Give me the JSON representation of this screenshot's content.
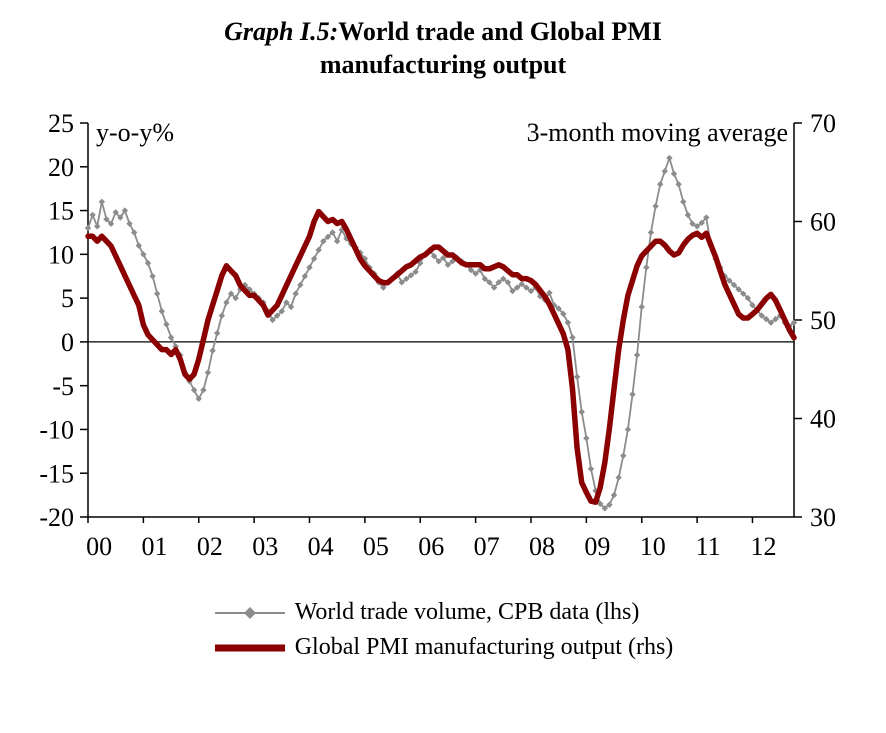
{
  "title": {
    "prefix": "Graph I.5:",
    "line1": "World trade and Global PMI",
    "line2": "manufacturing output"
  },
  "annotations": {
    "left": "y-o-y%",
    "right": "3-month moving average"
  },
  "legend": [
    {
      "label": "World trade volume, CPB data (lhs)"
    },
    {
      "label": "Global PMI manufacturing output (rhs)"
    }
  ],
  "chart_data": {
    "type": "line",
    "title": "Graph I.5: World trade and Global PMI manufacturing output",
    "x_range": [
      2000,
      2012.75
    ],
    "x_tick_labels": [
      "00",
      "01",
      "02",
      "03",
      "04",
      "05",
      "06",
      "07",
      "08",
      "09",
      "10",
      "11",
      "12"
    ],
    "left_axis": {
      "label": "y-o-y%",
      "range": [
        -20,
        25
      ],
      "ticks": [
        25,
        20,
        15,
        10,
        5,
        0,
        -5,
        -10,
        -15,
        -20
      ]
    },
    "right_axis": {
      "range": [
        30,
        70
      ],
      "ticks": [
        70,
        60,
        50,
        40,
        30
      ]
    },
    "frequency": "monthly",
    "series": [
      {
        "name": "World trade volume, CPB data (lhs)",
        "axis": "left",
        "color": "#8c8c8c",
        "marker": "diamond",
        "line_width": 1.8,
        "values": [
          13,
          14.5,
          13.2,
          16,
          14,
          13.5,
          14.8,
          14.2,
          15,
          13.5,
          12.5,
          11,
          10,
          9,
          7.5,
          5.5,
          3.5,
          2,
          0.5,
          -0.5,
          -1.5,
          -3.5,
          -4.5,
          -5.5,
          -6.5,
          -5.5,
          -3.5,
          -1,
          1,
          3,
          4.5,
          5.5,
          5,
          6,
          6.5,
          6,
          5.5,
          5,
          4.5,
          3.5,
          2.5,
          3,
          3.5,
          4.5,
          4,
          5.5,
          6.5,
          7.5,
          8.5,
          9.5,
          10.5,
          11.5,
          12,
          12.5,
          11.5,
          12.8,
          11.8,
          11.2,
          10.8,
          10.2,
          9.5,
          8.5,
          7.8,
          6.8,
          6.2,
          6.8,
          7.2,
          7.8,
          6.8,
          7.2,
          7.6,
          8,
          9,
          10,
          10.5,
          9.8,
          9.2,
          9.6,
          8.8,
          9.2,
          9.6,
          9.2,
          8.8,
          8.2,
          7.8,
          8.2,
          7.2,
          6.8,
          6.2,
          6.8,
          7.2,
          6.8,
          5.8,
          6.2,
          6.6,
          6.2,
          5.8,
          6.2,
          5.2,
          4.8,
          5.6,
          4.2,
          3.8,
          3.2,
          2.2,
          0.5,
          -4,
          -8,
          -11,
          -14.5,
          -17,
          -18.5,
          -19,
          -18.6,
          -17.5,
          -15.5,
          -13,
          -10,
          -6,
          -1.5,
          4,
          8.5,
          12.5,
          15.5,
          18,
          19.5,
          21,
          19.2,
          18,
          16,
          14.5,
          13.5,
          13.2,
          13.6,
          14.2,
          11,
          9.5,
          8.5,
          7.5,
          7,
          6.5,
          6,
          5.5,
          5,
          4.2,
          3.6,
          3,
          2.6,
          2.2,
          2.6,
          3,
          2.2,
          1.8,
          2.2
        ]
      },
      {
        "name": "Global PMI manufacturing output (rhs)",
        "axis": "right",
        "color": "#8b0000",
        "marker": "none",
        "line_width": 5.5,
        "values": [
          58.5,
          58.5,
          58,
          58.5,
          58,
          57.5,
          56.5,
          55.5,
          54.5,
          53.5,
          52.5,
          51.5,
          49.5,
          48.5,
          48,
          47.5,
          47,
          47,
          46.5,
          47,
          46,
          44.5,
          44,
          44.5,
          46,
          48,
          50,
          51.5,
          53,
          54.5,
          55.5,
          55,
          54.5,
          53.5,
          53,
          52.5,
          52.5,
          52,
          51.5,
          50.5,
          51,
          51.5,
          52.5,
          53.5,
          54.5,
          55.5,
          56.5,
          57.5,
          58.5,
          60,
          61,
          60.5,
          60,
          60.2,
          59.8,
          60,
          59.2,
          58.2,
          57.2,
          56.2,
          55.5,
          55,
          54.5,
          54,
          53.8,
          53.8,
          54.2,
          54.6,
          55,
          55.4,
          55.6,
          56,
          56.4,
          56.6,
          57,
          57.4,
          57.4,
          57,
          56.6,
          56.6,
          56.2,
          55.8,
          55.6,
          55.6,
          55.6,
          55.6,
          55.2,
          55.2,
          55.4,
          55.6,
          55.4,
          55,
          54.6,
          54.6,
          54.2,
          54.2,
          54,
          53.6,
          53,
          52.4,
          51.6,
          50.6,
          49.6,
          48.6,
          47,
          43,
          37,
          33.5,
          32.5,
          31.6,
          31.5,
          33,
          35.5,
          39,
          43,
          47,
          50,
          52.5,
          54,
          55.5,
          56.5,
          57,
          57.5,
          58,
          58,
          57.6,
          57,
          56.6,
          56.8,
          57.6,
          58.2,
          58.6,
          58.8,
          58.4,
          58.8,
          57.6,
          56.4,
          55,
          53.6,
          52.6,
          51.6,
          50.6,
          50.2,
          50.2,
          50.6,
          51,
          51.6,
          52.2,
          52.6,
          52,
          51,
          50,
          49,
          48.2
        ]
      }
    ]
  }
}
